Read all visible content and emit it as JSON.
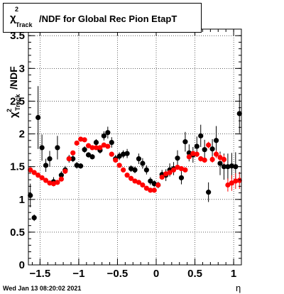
{
  "title": {
    "chi": "χ",
    "sup": "2",
    "sub": "Track",
    "text": "/NDF for Global Rec Pion EtapT"
  },
  "ylabel": {
    "chi": "χ",
    "sup": "2",
    "sub": "Track",
    "text": "/NDF"
  },
  "xlabel": "η",
  "timestamp": "Wed Jan 13 08:20:02 2021",
  "colors": {
    "series_black": "#000000",
    "series_red": "#ff0000",
    "frame": "#000000"
  },
  "chart_data": {
    "type": "scatter",
    "xlim": [
      -1.65,
      1.1
    ],
    "ylim": [
      0,
      3.6
    ],
    "xticks": [
      "−1.5",
      "−1",
      "−0.5",
      "0",
      "0.5",
      "1"
    ],
    "xtick_values": [
      -1.5,
      -1,
      -0.5,
      0,
      0.5,
      1
    ],
    "yticks": [
      "0",
      "0.5",
      "1",
      "1.5",
      "2",
      "2.5",
      "3",
      "3.5"
    ],
    "ytick_values": [
      0,
      0.5,
      1,
      1.5,
      2,
      2.5,
      3,
      3.5
    ],
    "grid": true,
    "series": [
      {
        "color": "#000000",
        "points": [
          [
            -1.625,
            1.06,
            0.18
          ],
          [
            -1.575,
            0.72,
            0.05
          ],
          [
            -1.525,
            2.25,
            0.48
          ],
          [
            -1.475,
            1.79,
            0.2
          ],
          [
            -1.425,
            1.52,
            0.1
          ],
          [
            -1.375,
            1.62,
            0.12
          ],
          [
            -1.325,
            1.27,
            0.07
          ],
          [
            -1.275,
            1.79,
            0.18
          ],
          [
            -1.225,
            1.37,
            0.06
          ],
          [
            -1.175,
            1.45,
            0.06
          ],
          [
            -1.125,
            1.62,
            0.06
          ],
          [
            -1.075,
            1.62,
            0.05
          ],
          [
            -1.025,
            1.52,
            0.05
          ],
          [
            -0.975,
            1.51,
            0.04
          ],
          [
            -0.925,
            1.76,
            0.05
          ],
          [
            -0.875,
            1.68,
            0.04
          ],
          [
            -0.825,
            1.65,
            0.04
          ],
          [
            -0.775,
            1.87,
            0.05
          ],
          [
            -0.725,
            1.75,
            0.05
          ],
          [
            -0.675,
            1.97,
            0.07
          ],
          [
            -0.625,
            2.02,
            0.09
          ],
          [
            -0.575,
            1.87,
            0.08
          ],
          [
            -0.525,
            1.62,
            0.06
          ],
          [
            -0.475,
            1.66,
            0.06
          ],
          [
            -0.425,
            1.69,
            0.06
          ],
          [
            -0.375,
            1.7,
            0.07
          ],
          [
            -0.325,
            1.47,
            0.05
          ],
          [
            -0.275,
            1.45,
            0.05
          ],
          [
            -0.225,
            1.62,
            0.08
          ],
          [
            -0.175,
            1.55,
            0.08
          ],
          [
            -0.125,
            1.45,
            0.07
          ],
          [
            -0.075,
            1.28,
            0.06
          ],
          [
            -0.025,
            1.24,
            0.05
          ],
          [
            0.025,
            1.22,
            0.05
          ],
          [
            0.075,
            1.38,
            0.07
          ],
          [
            0.125,
            1.37,
            0.09
          ],
          [
            0.175,
            1.45,
            0.1
          ],
          [
            0.225,
            1.47,
            0.1
          ],
          [
            0.275,
            1.63,
            0.12
          ],
          [
            0.325,
            1.33,
            0.1
          ],
          [
            0.375,
            1.88,
            0.15
          ],
          [
            0.425,
            1.71,
            0.13
          ],
          [
            0.475,
            1.68,
            0.12
          ],
          [
            0.525,
            1.81,
            0.15
          ],
          [
            0.575,
            1.97,
            0.17
          ],
          [
            0.625,
            1.76,
            0.15
          ],
          [
            0.675,
            1.11,
            0.15
          ],
          [
            0.725,
            1.77,
            0.15
          ],
          [
            0.775,
            1.9,
            0.22
          ],
          [
            0.825,
            1.55,
            0.18
          ],
          [
            0.875,
            1.5,
            0.2
          ],
          [
            0.925,
            1.5,
            0.2
          ],
          [
            0.975,
            1.51,
            0.2
          ],
          [
            1.025,
            1.5,
            0.22
          ],
          [
            1.075,
            2.31,
            0.3
          ]
        ]
      },
      {
        "color": "#ff0000",
        "points": [
          [
            -1.625,
            1.45,
            0.03
          ],
          [
            -1.575,
            1.41,
            0.03
          ],
          [
            -1.525,
            1.37,
            0.03
          ],
          [
            -1.475,
            1.33,
            0.03
          ],
          [
            -1.425,
            1.29,
            0.03
          ],
          [
            -1.375,
            1.25,
            0.03
          ],
          [
            -1.325,
            1.24,
            0.03
          ],
          [
            -1.275,
            1.26,
            0.03
          ],
          [
            -1.225,
            1.31,
            0.03
          ],
          [
            -1.175,
            1.43,
            0.03
          ],
          [
            -1.125,
            1.62,
            0.03
          ],
          [
            -1.075,
            1.71,
            0.03
          ],
          [
            -1.025,
            1.86,
            0.03
          ],
          [
            -0.975,
            1.92,
            0.03
          ],
          [
            -0.925,
            1.91,
            0.03
          ],
          [
            -0.875,
            1.82,
            0.03
          ],
          [
            -0.825,
            1.79,
            0.03
          ],
          [
            -0.775,
            1.79,
            0.03
          ],
          [
            -0.725,
            1.79,
            0.03
          ],
          [
            -0.675,
            1.83,
            0.03
          ],
          [
            -0.625,
            1.81,
            0.03
          ],
          [
            -0.575,
            1.69,
            0.03
          ],
          [
            -0.525,
            1.6,
            0.03
          ],
          [
            -0.475,
            1.52,
            0.03
          ],
          [
            -0.425,
            1.45,
            0.03
          ],
          [
            -0.375,
            1.37,
            0.03
          ],
          [
            -0.325,
            1.32,
            0.03
          ],
          [
            -0.275,
            1.28,
            0.03
          ],
          [
            -0.225,
            1.26,
            0.03
          ],
          [
            -0.175,
            1.22,
            0.03
          ],
          [
            -0.125,
            1.17,
            0.03
          ],
          [
            -0.075,
            1.14,
            0.03
          ],
          [
            -0.025,
            1.14,
            0.03
          ],
          [
            0.025,
            1.22,
            0.03
          ],
          [
            0.075,
            1.34,
            0.03
          ],
          [
            0.125,
            1.39,
            0.03
          ],
          [
            0.175,
            1.41,
            0.03
          ],
          [
            0.225,
            1.45,
            0.03
          ],
          [
            0.275,
            1.49,
            0.03
          ],
          [
            0.325,
            1.47,
            0.03
          ],
          [
            0.375,
            1.45,
            0.03
          ],
          [
            0.425,
            1.65,
            0.04
          ],
          [
            0.475,
            1.7,
            0.04
          ],
          [
            0.525,
            1.69,
            0.04
          ],
          [
            0.575,
            1.62,
            0.04
          ],
          [
            0.625,
            1.6,
            0.04
          ],
          [
            0.675,
            1.83,
            0.05
          ],
          [
            0.725,
            1.61,
            0.05
          ],
          [
            0.775,
            1.69,
            0.06
          ],
          [
            0.825,
            1.64,
            0.06
          ],
          [
            0.875,
            1.61,
            0.07
          ],
          [
            0.925,
            1.22,
            0.1
          ],
          [
            0.975,
            1.25,
            0.12
          ],
          [
            1.025,
            1.28,
            0.12
          ],
          [
            1.075,
            1.29,
            0.13
          ]
        ]
      }
    ]
  }
}
